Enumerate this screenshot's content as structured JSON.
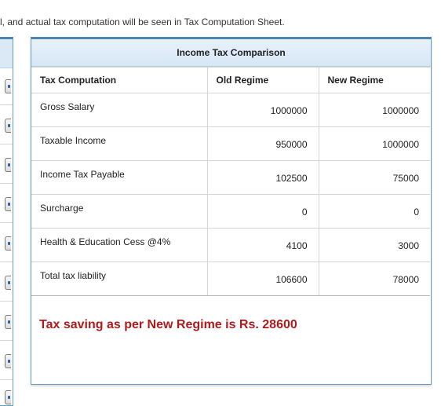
{
  "note": "l, and actual tax computation will be seen in Tax Computation Sheet.",
  "panel": {
    "title": "Income Tax Comparison",
    "headers": [
      "Tax Computation",
      "Old Regime",
      "New Regime"
    ],
    "rows": [
      {
        "label": "Gross Salary",
        "old": "1000000",
        "new": "1000000"
      },
      {
        "label": "Taxable Income",
        "old": "950000",
        "new": "1000000"
      },
      {
        "label": "Income Tax Payable",
        "old": "102500",
        "new": "75000"
      },
      {
        "label": "Surcharge",
        "old": "0",
        "new": "0"
      },
      {
        "label": "Health & Education Cess @4%",
        "old": "4100",
        "new": "3000"
      },
      {
        "label": "Total tax liability",
        "old": "106600",
        "new": "78000"
      }
    ],
    "saving_text": "Tax saving as per New Regime is Rs. 28600"
  },
  "colors": {
    "accent": "#4a86b5",
    "saving": "#b11a1a",
    "header_bg": "#dbe8f5"
  }
}
